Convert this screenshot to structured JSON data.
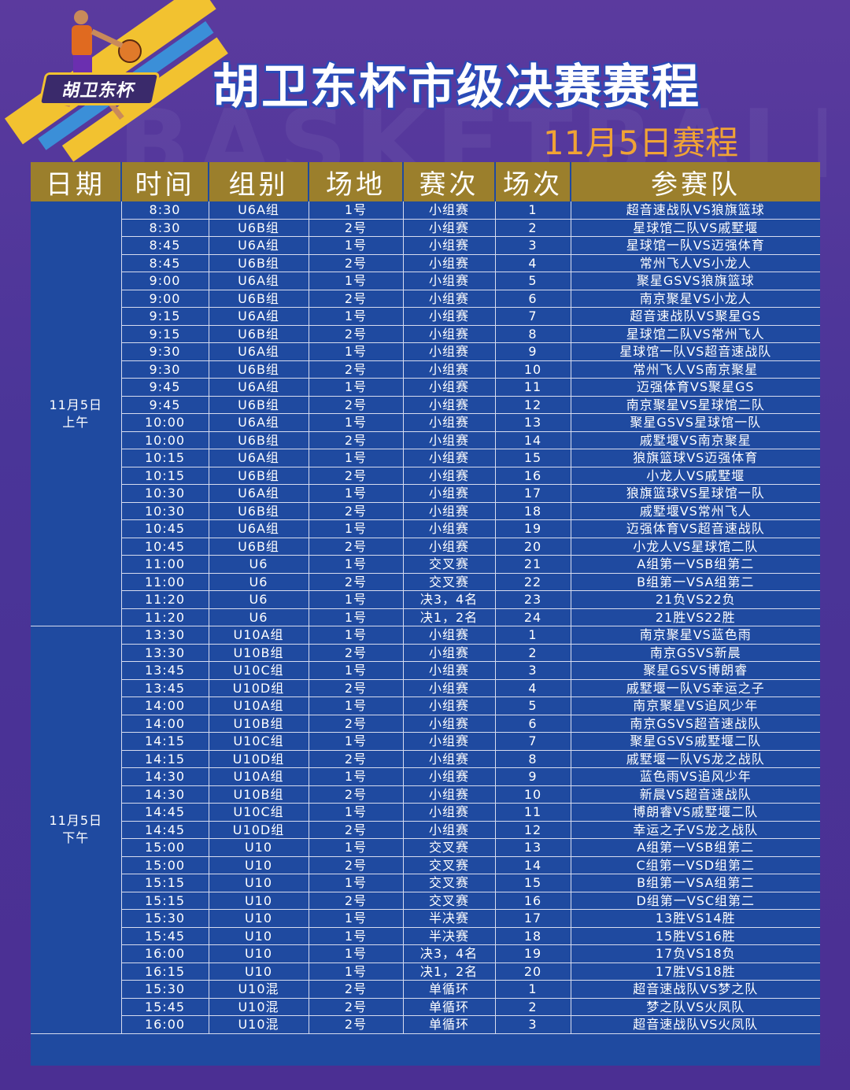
{
  "title": "胡卫东杯市级决赛赛程",
  "subtitle": "11月5日赛程",
  "logo_text": "胡卫东杯",
  "watermark": "BASKETBALL",
  "colors": {
    "header": "#9b7f2c",
    "table": "#1f4aa0",
    "title_outline": "#2a4bb8",
    "subtitle": "#f0a335",
    "background": "#4a3598"
  },
  "headers": [
    "日期",
    "时间",
    "组别",
    "场地",
    "赛次",
    "场次",
    "参赛队"
  ],
  "sessions": [
    {
      "date_line1": "11月5日",
      "date_line2": "上午",
      "rows": [
        [
          "8:30",
          "U6A组",
          "1号",
          "小组赛",
          "1",
          "超音速战队VS狼旗篮球"
        ],
        [
          "8:30",
          "U6B组",
          "2号",
          "小组赛",
          "2",
          "星球馆二队VS戚墅堰"
        ],
        [
          "8:45",
          "U6A组",
          "1号",
          "小组赛",
          "3",
          "星球馆一队VS迈强体育"
        ],
        [
          "8:45",
          "U6B组",
          "2号",
          "小组赛",
          "4",
          "常州飞人VS小龙人"
        ],
        [
          "9:00",
          "U6A组",
          "1号",
          "小组赛",
          "5",
          "聚星GSVS狼旗篮球"
        ],
        [
          "9:00",
          "U6B组",
          "2号",
          "小组赛",
          "6",
          "南京聚星VS小龙人"
        ],
        [
          "9:15",
          "U6A组",
          "1号",
          "小组赛",
          "7",
          "超音速战队VS聚星GS"
        ],
        [
          "9:15",
          "U6B组",
          "2号",
          "小组赛",
          "8",
          "星球馆二队VS常州飞人"
        ],
        [
          "9:30",
          "U6A组",
          "1号",
          "小组赛",
          "9",
          "星球馆一队VS超音速战队"
        ],
        [
          "9:30",
          "U6B组",
          "2号",
          "小组赛",
          "10",
          "常州飞人VS南京聚星"
        ],
        [
          "9:45",
          "U6A组",
          "1号",
          "小组赛",
          "11",
          "迈强体育VS聚星GS"
        ],
        [
          "9:45",
          "U6B组",
          "2号",
          "小组赛",
          "12",
          "南京聚星VS星球馆二队"
        ],
        [
          "10:00",
          "U6A组",
          "1号",
          "小组赛",
          "13",
          "聚星GSVS星球馆一队"
        ],
        [
          "10:00",
          "U6B组",
          "2号",
          "小组赛",
          "14",
          "戚墅堰VS南京聚星"
        ],
        [
          "10:15",
          "U6A组",
          "1号",
          "小组赛",
          "15",
          "狼旗篮球VS迈强体育"
        ],
        [
          "10:15",
          "U6B组",
          "2号",
          "小组赛",
          "16",
          "小龙人VS戚墅堰"
        ],
        [
          "10:30",
          "U6A组",
          "1号",
          "小组赛",
          "17",
          "狼旗篮球VS星球馆一队"
        ],
        [
          "10:30",
          "U6B组",
          "2号",
          "小组赛",
          "18",
          "戚墅堰VS常州飞人"
        ],
        [
          "10:45",
          "U6A组",
          "1号",
          "小组赛",
          "19",
          "迈强体育VS超音速战队"
        ],
        [
          "10:45",
          "U6B组",
          "2号",
          "小组赛",
          "20",
          "小龙人VS星球馆二队"
        ],
        [
          "11:00",
          "U6",
          "1号",
          "交叉赛",
          "21",
          "A组第一VSB组第二"
        ],
        [
          "11:00",
          "U6",
          "2号",
          "交叉赛",
          "22",
          "B组第一VSA组第二"
        ],
        [
          "11:20",
          "U6",
          "1号",
          "决3，4名",
          "23",
          "21负VS22负"
        ],
        [
          "11:20",
          "U6",
          "1号",
          "决1，2名",
          "24",
          "21胜VS22胜"
        ]
      ]
    },
    {
      "date_line1": "11月5日",
      "date_line2": "下午",
      "rows": [
        [
          "13:30",
          "U10A组",
          "1号",
          "小组赛",
          "1",
          "南京聚星VS蓝色雨"
        ],
        [
          "13:30",
          "U10B组",
          "2号",
          "小组赛",
          "2",
          "南京GSVS新晨"
        ],
        [
          "13:45",
          "U10C组",
          "1号",
          "小组赛",
          "3",
          "聚星GSVS博朗睿"
        ],
        [
          "13:45",
          "U10D组",
          "2号",
          "小组赛",
          "4",
          "戚墅堰一队VS幸运之子"
        ],
        [
          "14:00",
          "U10A组",
          "1号",
          "小组赛",
          "5",
          "南京聚星VS追风少年"
        ],
        [
          "14:00",
          "U10B组",
          "2号",
          "小组赛",
          "6",
          "南京GSVS超音速战队"
        ],
        [
          "14:15",
          "U10C组",
          "1号",
          "小组赛",
          "7",
          "聚星GSVS戚墅堰二队"
        ],
        [
          "14:15",
          "U10D组",
          "2号",
          "小组赛",
          "8",
          "戚墅堰一队VS龙之战队"
        ],
        [
          "14:30",
          "U10A组",
          "1号",
          "小组赛",
          "9",
          "蓝色雨VS追风少年"
        ],
        [
          "14:30",
          "U10B组",
          "2号",
          "小组赛",
          "10",
          "新晨VS超音速战队"
        ],
        [
          "14:45",
          "U10C组",
          "1号",
          "小组赛",
          "11",
          "博朗睿VS戚墅堰二队"
        ],
        [
          "14:45",
          "U10D组",
          "2号",
          "小组赛",
          "12",
          "幸运之子VS龙之战队"
        ],
        [
          "15:00",
          "U10",
          "1号",
          "交叉赛",
          "13",
          "A组第一VSB组第二"
        ],
        [
          "15:00",
          "U10",
          "2号",
          "交叉赛",
          "14",
          "C组第一VSD组第二"
        ],
        [
          "15:15",
          "U10",
          "1号",
          "交叉赛",
          "15",
          "B组第一VSA组第二"
        ],
        [
          "15:15",
          "U10",
          "2号",
          "交叉赛",
          "16",
          "D组第一VSC组第二"
        ],
        [
          "15:30",
          "U10",
          "1号",
          "半决赛",
          "17",
          "13胜VS14胜"
        ],
        [
          "15:45",
          "U10",
          "1号",
          "半决赛",
          "18",
          "15胜VS16胜"
        ],
        [
          "16:00",
          "U10",
          "1号",
          "决3，4名",
          "19",
          "17负VS18负"
        ],
        [
          "16:15",
          "U10",
          "1号",
          "决1，2名",
          "20",
          "17胜VS18胜"
        ],
        [
          "15:30",
          "U10混",
          "2号",
          "单循环",
          "1",
          "超音速战队VS梦之队"
        ],
        [
          "15:45",
          "U10混",
          "2号",
          "单循环",
          "2",
          "梦之队VS火凤队"
        ],
        [
          "16:00",
          "U10混",
          "2号",
          "单循环",
          "3",
          "超音速战队VS火凤队"
        ]
      ]
    }
  ]
}
